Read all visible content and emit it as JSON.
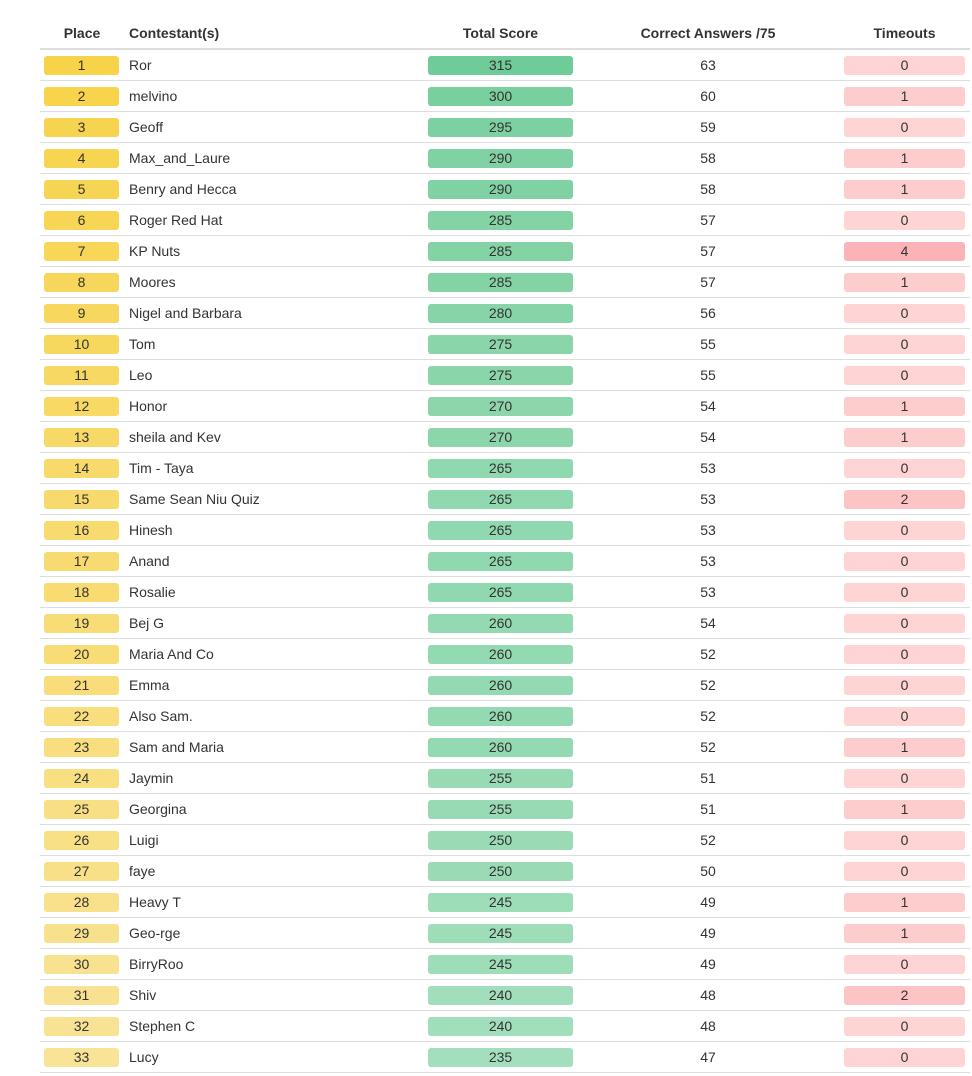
{
  "table": {
    "headers": {
      "place": "Place",
      "contestants": "Contestant(s)",
      "total_score": "Total Score",
      "correct_answers": "Correct Answers /75",
      "timeouts": "Timeouts"
    },
    "rows": [
      {
        "place": "1",
        "name": "Ror",
        "score": "315",
        "correct": "63",
        "timeouts": "0"
      },
      {
        "place": "2",
        "name": "melvino",
        "score": "300",
        "correct": "60",
        "timeouts": "1"
      },
      {
        "place": "3",
        "name": "Geoff",
        "score": "295",
        "correct": "59",
        "timeouts": "0"
      },
      {
        "place": "4",
        "name": "Max_and_Laure",
        "score": "290",
        "correct": "58",
        "timeouts": "1"
      },
      {
        "place": "5",
        "name": "Benry and Hecca",
        "score": "290",
        "correct": "58",
        "timeouts": "1"
      },
      {
        "place": "6",
        "name": "Roger Red Hat",
        "score": "285",
        "correct": "57",
        "timeouts": "0"
      },
      {
        "place": "7",
        "name": "KP Nuts",
        "score": "285",
        "correct": "57",
        "timeouts": "4"
      },
      {
        "place": "8",
        "name": "Moores",
        "score": "285",
        "correct": "57",
        "timeouts": "1"
      },
      {
        "place": "9",
        "name": "Nigel and Barbara",
        "score": "280",
        "correct": "56",
        "timeouts": "0"
      },
      {
        "place": "10",
        "name": "Tom",
        "score": "275",
        "correct": "55",
        "timeouts": "0"
      },
      {
        "place": "11",
        "name": "Leo",
        "score": "275",
        "correct": "55",
        "timeouts": "0"
      },
      {
        "place": "12",
        "name": "Honor",
        "score": "270",
        "correct": "54",
        "timeouts": "1"
      },
      {
        "place": "13",
        "name": "sheila and Kev",
        "score": "270",
        "correct": "54",
        "timeouts": "1"
      },
      {
        "place": "14",
        "name": "Tim - Taya",
        "score": "265",
        "correct": "53",
        "timeouts": "0"
      },
      {
        "place": "15",
        "name": "Same Sean Niu Quiz",
        "score": "265",
        "correct": "53",
        "timeouts": "2"
      },
      {
        "place": "16",
        "name": "Hinesh",
        "score": "265",
        "correct": "53",
        "timeouts": "0"
      },
      {
        "place": "17",
        "name": "Anand",
        "score": "265",
        "correct": "53",
        "timeouts": "0"
      },
      {
        "place": "18",
        "name": "Rosalie",
        "score": "265",
        "correct": "53",
        "timeouts": "0"
      },
      {
        "place": "19",
        "name": "Bej G",
        "score": "260",
        "correct": "54",
        "timeouts": "0"
      },
      {
        "place": "20",
        "name": "Maria And Co",
        "score": "260",
        "correct": "52",
        "timeouts": "0"
      },
      {
        "place": "21",
        "name": "Emma",
        "score": "260",
        "correct": "52",
        "timeouts": "0"
      },
      {
        "place": "22",
        "name": "Also Sam.",
        "score": "260",
        "correct": "52",
        "timeouts": "0"
      },
      {
        "place": "23",
        "name": "Sam and Maria",
        "score": "260",
        "correct": "52",
        "timeouts": "1"
      },
      {
        "place": "24",
        "name": "Jaymin",
        "score": "255",
        "correct": "51",
        "timeouts": "0"
      },
      {
        "place": "25",
        "name": "Georgina",
        "score": "255",
        "correct": "51",
        "timeouts": "1"
      },
      {
        "place": "26",
        "name": "Luigi",
        "score": "250",
        "correct": "52",
        "timeouts": "0"
      },
      {
        "place": "27",
        "name": "faye",
        "score": "250",
        "correct": "50",
        "timeouts": "0"
      },
      {
        "place": "28",
        "name": "Heavy T",
        "score": "245",
        "correct": "49",
        "timeouts": "1"
      },
      {
        "place": "29",
        "name": "Geo-rge",
        "score": "245",
        "correct": "49",
        "timeouts": "1"
      },
      {
        "place": "30",
        "name": "BirryRoo",
        "score": "245",
        "correct": "49",
        "timeouts": "0"
      },
      {
        "place": "31",
        "name": "Shiv",
        "score": "240",
        "correct": "48",
        "timeouts": "2"
      },
      {
        "place": "32",
        "name": "Stephen C",
        "score": "240",
        "correct": "48",
        "timeouts": "0"
      },
      {
        "place": "33",
        "name": "Lucy",
        "score": "235",
        "correct": "47",
        "timeouts": "0"
      }
    ]
  },
  "colors": {
    "place_strong": "#f7d34a",
    "place_light": "#f8e396",
    "score_strong": "#6fcb97",
    "score_light": "#a4dfbd",
    "timeouts_light": "#fed4d4",
    "timeouts_strong": "#fbb3b8",
    "divider": "#dddddd",
    "text": "#333333"
  }
}
